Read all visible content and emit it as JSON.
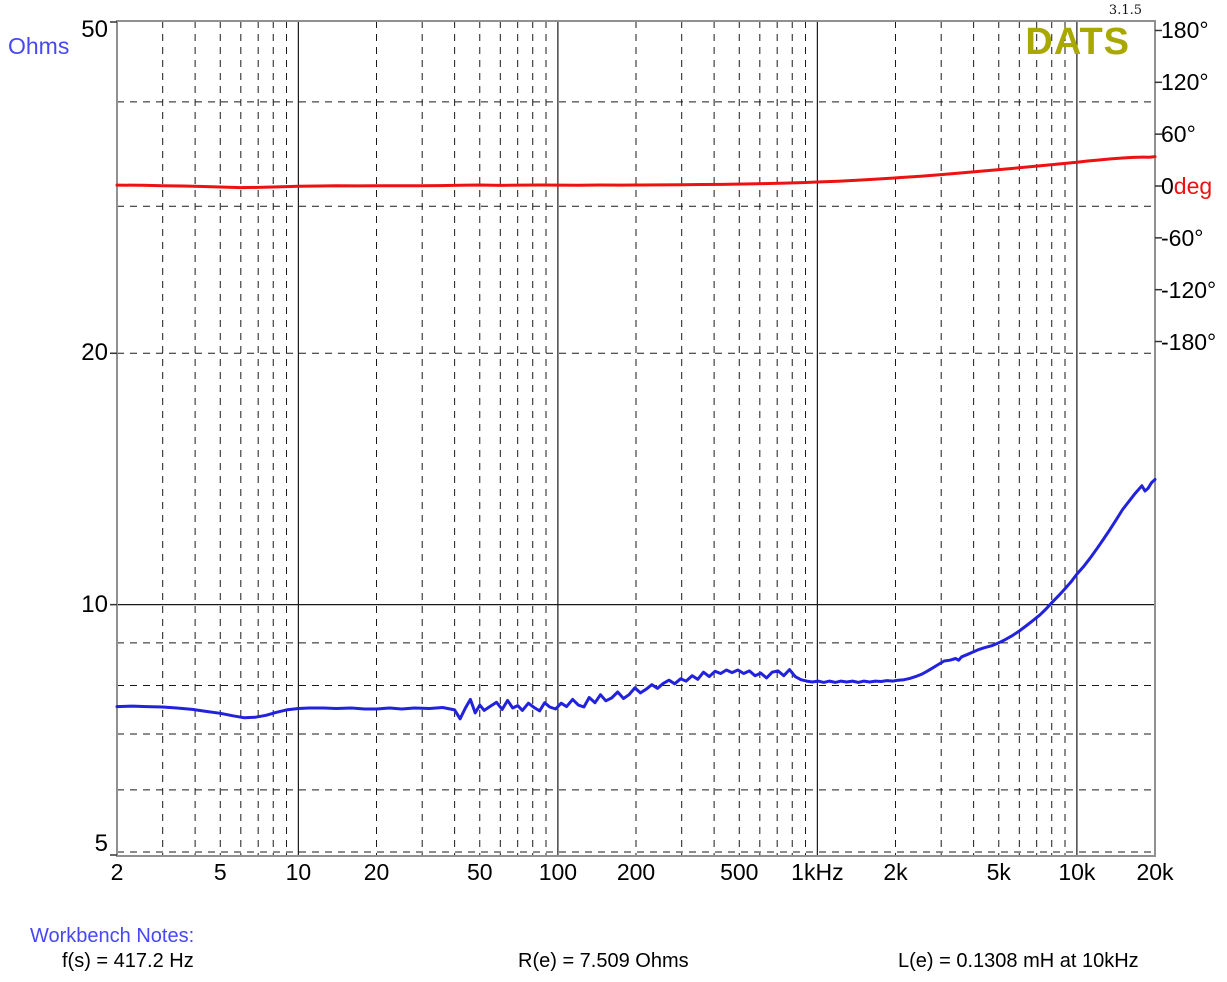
{
  "app": {
    "title": "DATS",
    "version": "3.1.5",
    "title_color": "#a8a800"
  },
  "colors": {
    "impedance_curve": "#2222dd",
    "phase_curve": "#ee1111",
    "blue_text": "#4747f5",
    "grid_line": "#1a1a1a",
    "border": "#909090"
  },
  "notes": {
    "header": "Workbench Notes:",
    "fs": "f(s) = 417.2 Hz",
    "re": "R(e) = 7.509 Ohms",
    "le": "L(e) = 0.1308 mH at 10kHz"
  },
  "chart_data": {
    "type": "line",
    "title": "DATS",
    "x_axis": {
      "scale": "log",
      "unit": "Hz",
      "min": 2,
      "max": 20000,
      "tick_values": [
        2,
        5,
        10,
        20,
        50,
        100,
        200,
        500,
        1000,
        2000,
        5000,
        10000,
        20000
      ],
      "tick_labels": [
        "2",
        "5",
        "10",
        "20",
        "50",
        "100",
        "200",
        "500",
        "1kHz",
        "2k",
        "5k",
        "10k",
        "20k"
      ],
      "major_gridlines": [
        10,
        100,
        1000,
        10000
      ],
      "minor_gridlines": [
        3,
        4,
        5,
        6,
        7,
        8,
        9,
        20,
        30,
        40,
        50,
        60,
        70,
        80,
        90,
        200,
        300,
        400,
        500,
        600,
        700,
        800,
        900,
        2000,
        3000,
        4000,
        5000,
        6000,
        7000,
        8000,
        9000
      ]
    },
    "y_left_axis": {
      "name": "Ohms",
      "scale": "log",
      "min": 5,
      "max": 50,
      "tick_values": [
        50,
        20,
        10,
        5
      ],
      "tick_labels": [
        "50",
        "20",
        "10",
        "5"
      ],
      "major_gridlines": [
        10
      ],
      "minor_gridlines": [
        40,
        30,
        20,
        9,
        8,
        7,
        6,
        5
      ]
    },
    "y_right_axis": {
      "name": "deg",
      "scale": "linear",
      "min": -180,
      "max": 180,
      "ticks": [
        {
          "value": 180,
          "parts": [
            {
              "text": "180°",
              "color": "#000000"
            }
          ]
        },
        {
          "value": 120,
          "parts": [
            {
              "text": "120°",
              "color": "#000000"
            }
          ]
        },
        {
          "value": 60,
          "parts": [
            {
              "text": "60°",
              "color": "#000000"
            }
          ]
        },
        {
          "value": 0,
          "parts": [
            {
              "text": "0",
              "color": "#000000"
            },
            {
              "text": "deg",
              "color": "#ee1111"
            }
          ]
        },
        {
          "value": -60,
          "parts": [
            {
              "text": "-60°",
              "color": "#000000"
            }
          ]
        },
        {
          "value": -120,
          "parts": [
            {
              "text": "-120°",
              "color": "#000000"
            }
          ]
        },
        {
          "value": -180,
          "parts": [
            {
              "text": "-180°",
              "color": "#000000"
            }
          ]
        }
      ]
    },
    "series": [
      {
        "name": "impedance",
        "axis": "left",
        "unit": "Ohms",
        "color": "#2222dd",
        "points": [
          [
            2,
            7.55
          ],
          [
            2.3,
            7.56
          ],
          [
            2.6,
            7.55
          ],
          [
            3,
            7.54
          ],
          [
            3.4,
            7.52
          ],
          [
            3.9,
            7.49
          ],
          [
            4.4,
            7.45
          ],
          [
            5,
            7.41
          ],
          [
            5.6,
            7.36
          ],
          [
            6.2,
            7.32
          ],
          [
            6.8,
            7.33
          ],
          [
            7.5,
            7.37
          ],
          [
            8.2,
            7.43
          ],
          [
            9,
            7.48
          ],
          [
            10,
            7.51
          ],
          [
            11,
            7.52
          ],
          [
            12.5,
            7.52
          ],
          [
            14,
            7.51
          ],
          [
            16,
            7.52
          ],
          [
            18,
            7.5
          ],
          [
            20,
            7.5
          ],
          [
            22.5,
            7.52
          ],
          [
            25,
            7.5
          ],
          [
            28,
            7.52
          ],
          [
            32,
            7.51
          ],
          [
            36,
            7.53
          ],
          [
            40,
            7.48
          ],
          [
            42,
            7.3
          ],
          [
            44,
            7.52
          ],
          [
            46,
            7.7
          ],
          [
            48,
            7.42
          ],
          [
            50,
            7.58
          ],
          [
            52,
            7.47
          ],
          [
            55,
            7.56
          ],
          [
            58,
            7.64
          ],
          [
            61,
            7.49
          ],
          [
            64,
            7.68
          ],
          [
            67,
            7.52
          ],
          [
            70,
            7.57
          ],
          [
            73,
            7.47
          ],
          [
            77,
            7.62
          ],
          [
            81,
            7.53
          ],
          [
            85,
            7.46
          ],
          [
            89,
            7.63
          ],
          [
            93,
            7.54
          ],
          [
            98,
            7.5
          ],
          [
            103,
            7.62
          ],
          [
            108,
            7.55
          ],
          [
            114,
            7.7
          ],
          [
            120,
            7.58
          ],
          [
            126,
            7.54
          ],
          [
            132,
            7.74
          ],
          [
            139,
            7.63
          ],
          [
            146,
            7.8
          ],
          [
            153,
            7.67
          ],
          [
            161,
            7.73
          ],
          [
            170,
            7.86
          ],
          [
            179,
            7.72
          ],
          [
            188,
            7.8
          ],
          [
            198,
            7.95
          ],
          [
            208,
            7.84
          ],
          [
            219,
            7.92
          ],
          [
            230,
            8.02
          ],
          [
            242,
            7.94
          ],
          [
            255,
            8.05
          ],
          [
            268,
            8.12
          ],
          [
            282,
            8.04
          ],
          [
            297,
            8.15
          ],
          [
            312,
            8.1
          ],
          [
            329,
            8.22
          ],
          [
            346,
            8.14
          ],
          [
            364,
            8.3
          ],
          [
            383,
            8.2
          ],
          [
            403,
            8.32
          ],
          [
            424,
            8.27
          ],
          [
            446,
            8.35
          ],
          [
            469,
            8.29
          ],
          [
            494,
            8.35
          ],
          [
            520,
            8.27
          ],
          [
            547,
            8.33
          ],
          [
            575,
            8.22
          ],
          [
            605,
            8.28
          ],
          [
            637,
            8.17
          ],
          [
            670,
            8.3
          ],
          [
            705,
            8.33
          ],
          [
            742,
            8.22
          ],
          [
            781,
            8.36
          ],
          [
            821,
            8.2
          ],
          [
            864,
            8.13
          ],
          [
            909,
            8.1
          ],
          [
            956,
            8.08
          ],
          [
            1006,
            8.1
          ],
          [
            1059,
            8.07
          ],
          [
            1114,
            8.1
          ],
          [
            1172,
            8.07
          ],
          [
            1233,
            8.1
          ],
          [
            1297,
            8.08
          ],
          [
            1365,
            8.1
          ],
          [
            1436,
            8.07
          ],
          [
            1511,
            8.1
          ],
          [
            1590,
            8.08
          ],
          [
            1673,
            8.1
          ],
          [
            1760,
            8.09
          ],
          [
            1852,
            8.11
          ],
          [
            1949,
            8.1
          ],
          [
            2051,
            8.12
          ],
          [
            2158,
            8.13
          ],
          [
            2271,
            8.16
          ],
          [
            2389,
            8.2
          ],
          [
            2514,
            8.25
          ],
          [
            2645,
            8.32
          ],
          [
            2783,
            8.4
          ],
          [
            2928,
            8.48
          ],
          [
            3081,
            8.56
          ],
          [
            3242,
            8.58
          ],
          [
            3411,
            8.62
          ],
          [
            3500,
            8.58
          ],
          [
            3600,
            8.66
          ],
          [
            3800,
            8.72
          ],
          [
            4000,
            8.78
          ],
          [
            4200,
            8.84
          ],
          [
            4400,
            8.88
          ],
          [
            4700,
            8.93
          ],
          [
            5000,
            9.0
          ],
          [
            5300,
            9.08
          ],
          [
            5600,
            9.17
          ],
          [
            6000,
            9.3
          ],
          [
            6400,
            9.44
          ],
          [
            6800,
            9.58
          ],
          [
            7200,
            9.72
          ],
          [
            7600,
            9.88
          ],
          [
            8000,
            10.05
          ],
          [
            8500,
            10.25
          ],
          [
            9000,
            10.45
          ],
          [
            9500,
            10.65
          ],
          [
            10000,
            10.88
          ],
          [
            10600,
            11.1
          ],
          [
            11200,
            11.35
          ],
          [
            11900,
            11.65
          ],
          [
            12600,
            11.95
          ],
          [
            13400,
            12.3
          ],
          [
            14200,
            12.65
          ],
          [
            15000,
            13.0
          ],
          [
            15900,
            13.3
          ],
          [
            16800,
            13.6
          ],
          [
            17800,
            13.88
          ],
          [
            18300,
            13.68
          ],
          [
            18800,
            13.78
          ],
          [
            19400,
            14.0
          ],
          [
            20000,
            14.12
          ]
        ]
      },
      {
        "name": "phase",
        "axis": "right",
        "unit": "deg",
        "color": "#ee1111",
        "points": [
          [
            2,
            1.0
          ],
          [
            2.5,
            0.8
          ],
          [
            3,
            0.4
          ],
          [
            3.6,
            0.0
          ],
          [
            4.3,
            -0.6
          ],
          [
            5,
            -1.2
          ],
          [
            6,
            -1.8
          ],
          [
            7,
            -1.6
          ],
          [
            8,
            -1.1
          ],
          [
            9,
            -0.7
          ],
          [
            10,
            -0.4
          ],
          [
            12,
            0.0
          ],
          [
            14,
            0.3
          ],
          [
            17,
            0.1
          ],
          [
            20,
            0.2
          ],
          [
            24,
            0.4
          ],
          [
            29,
            0.2
          ],
          [
            35,
            0.5
          ],
          [
            42,
            0.9
          ],
          [
            50,
            1.1
          ],
          [
            60,
            0.7
          ],
          [
            72,
            1.0
          ],
          [
            86,
            1.2
          ],
          [
            100,
            1.0
          ],
          [
            120,
            0.8
          ],
          [
            145,
            1.2
          ],
          [
            175,
            1.0
          ],
          [
            210,
            1.1
          ],
          [
            250,
            1.3
          ],
          [
            300,
            1.5
          ],
          [
            360,
            1.7
          ],
          [
            430,
            1.9
          ],
          [
            520,
            2.3
          ],
          [
            620,
            2.8
          ],
          [
            750,
            3.3
          ],
          [
            900,
            4.0
          ],
          [
            1000,
            4.6
          ],
          [
            1200,
            5.6
          ],
          [
            1450,
            6.8
          ],
          [
            1750,
            8.2
          ],
          [
            2100,
            9.8
          ],
          [
            2500,
            11.4
          ],
          [
            3000,
            13.2
          ],
          [
            3600,
            15.2
          ],
          [
            4300,
            17.2
          ],
          [
            5200,
            19.4
          ],
          [
            6200,
            21.5
          ],
          [
            7500,
            23.8
          ],
          [
            9000,
            26.2
          ],
          [
            10000,
            27.6
          ],
          [
            11000,
            28.9
          ],
          [
            12000,
            30.0
          ],
          [
            13500,
            31.4
          ],
          [
            15000,
            32.4
          ],
          [
            16500,
            33.1
          ],
          [
            18000,
            33.4
          ],
          [
            19000,
            33.3
          ],
          [
            20000,
            34.0
          ]
        ]
      }
    ]
  }
}
